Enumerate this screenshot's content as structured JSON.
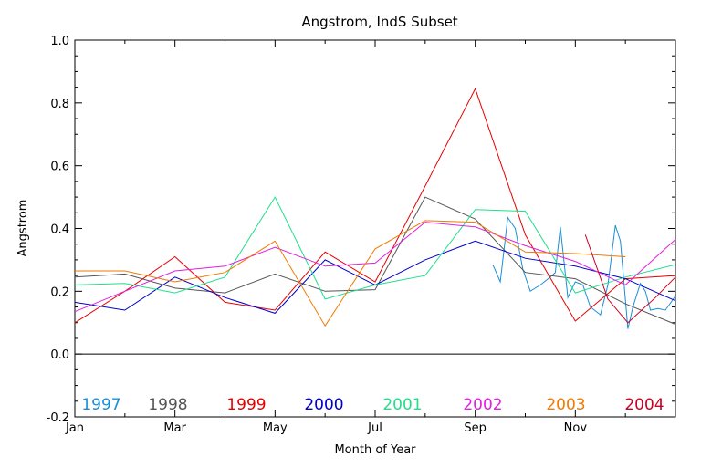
{
  "chart_data": {
    "type": "line",
    "title": "Angstrom, IndS Subset",
    "xlabel": "Month of Year",
    "ylabel": "Angstrom",
    "xlim": [
      0,
      12
    ],
    "ylim": [
      -0.2,
      1.0
    ],
    "x_tick_labels": [
      {
        "label": "Jan",
        "x": 0
      },
      {
        "label": "Mar",
        "x": 2
      },
      {
        "label": "May",
        "x": 4
      },
      {
        "label": "Jul",
        "x": 6
      },
      {
        "label": "Sep",
        "x": 8
      },
      {
        "label": "Nov",
        "x": 10
      }
    ],
    "y_tick_labels": [
      "-0.2",
      "0.0",
      "0.2",
      "0.4",
      "0.6",
      "0.8",
      "1.0"
    ],
    "y_ticks": [
      -0.2,
      0.0,
      0.2,
      0.4,
      0.6,
      0.8,
      1.0
    ],
    "zero_line": true,
    "legend_position": "bottom inside plot",
    "series": [
      {
        "name": "1997",
        "color": "#1a8fd6",
        "x": [
          8.35,
          8.5,
          8.65,
          8.8,
          8.95,
          9.1,
          9.3,
          9.5,
          9.6,
          9.7,
          9.85,
          10.0,
          10.15,
          10.3,
          10.5,
          10.65,
          10.8,
          10.9,
          11.05,
          11.15,
          11.3,
          11.4,
          11.5,
          11.65,
          11.8,
          12.0
        ],
        "y": [
          0.285,
          0.23,
          0.435,
          0.4,
          0.27,
          0.2,
          0.22,
          0.245,
          0.26,
          0.405,
          0.18,
          0.23,
          0.22,
          0.15,
          0.125,
          0.22,
          0.41,
          0.36,
          0.08,
          0.15,
          0.225,
          0.2,
          0.14,
          0.145,
          0.14,
          0.185
        ]
      },
      {
        "name": "1998",
        "color": "#555555",
        "x": [
          0,
          1,
          2,
          3,
          4,
          5,
          6,
          7,
          8,
          9,
          10,
          11,
          12
        ],
        "y": [
          0.245,
          0.255,
          0.21,
          0.195,
          0.255,
          0.2,
          0.205,
          0.5,
          0.43,
          0.26,
          0.24,
          0.16,
          0.095
        ]
      },
      {
        "name": "1999",
        "color": "#e60000",
        "x": [
          0,
          1,
          2,
          3,
          4,
          5,
          6,
          7,
          8,
          9,
          10,
          11,
          12
        ],
        "y": [
          0.1,
          0.2,
          0.31,
          0.165,
          0.14,
          0.325,
          0.23,
          0.535,
          0.845,
          0.38,
          0.105,
          0.24,
          0.25
        ]
      },
      {
        "name": "2000",
        "color": "#0000cc",
        "x": [
          0,
          1,
          2,
          3,
          4,
          5,
          6,
          7,
          8,
          9,
          10,
          11,
          12
        ],
        "y": [
          0.165,
          0.14,
          0.245,
          0.18,
          0.13,
          0.3,
          0.22,
          0.3,
          0.36,
          0.305,
          0.28,
          0.24,
          0.17
        ]
      },
      {
        "name": "2001",
        "color": "#1fe08a",
        "x": [
          0,
          1,
          2,
          3,
          4,
          5,
          6,
          7,
          8,
          9,
          10,
          11,
          12
        ],
        "y": [
          0.22,
          0.225,
          0.195,
          0.245,
          0.5,
          0.175,
          0.22,
          0.25,
          0.46,
          0.455,
          0.195,
          0.245,
          0.285
        ]
      },
      {
        "name": "2002",
        "color": "#e020e0",
        "x": [
          0,
          1,
          2,
          3,
          4,
          5,
          6,
          7,
          8,
          9,
          10,
          11,
          12
        ],
        "y": [
          0.135,
          0.2,
          0.265,
          0.28,
          0.34,
          0.28,
          0.29,
          0.42,
          0.405,
          0.345,
          0.295,
          0.22,
          0.365
        ]
      },
      {
        "name": "2003",
        "color": "#f07a00",
        "x": [
          0,
          1,
          2,
          3,
          4,
          5,
          6,
          7,
          8,
          9,
          10,
          11
        ],
        "y": [
          0.265,
          0.265,
          0.23,
          0.26,
          0.36,
          0.09,
          0.335,
          0.425,
          0.42,
          0.325,
          0.32,
          0.31
        ]
      },
      {
        "name": "2004",
        "color": "#cc0022",
        "x": [
          10.2,
          10.65,
          11.05,
          11.6,
          12.0
        ],
        "y": [
          0.38,
          0.175,
          0.1,
          0.18,
          0.245
        ]
      }
    ]
  }
}
